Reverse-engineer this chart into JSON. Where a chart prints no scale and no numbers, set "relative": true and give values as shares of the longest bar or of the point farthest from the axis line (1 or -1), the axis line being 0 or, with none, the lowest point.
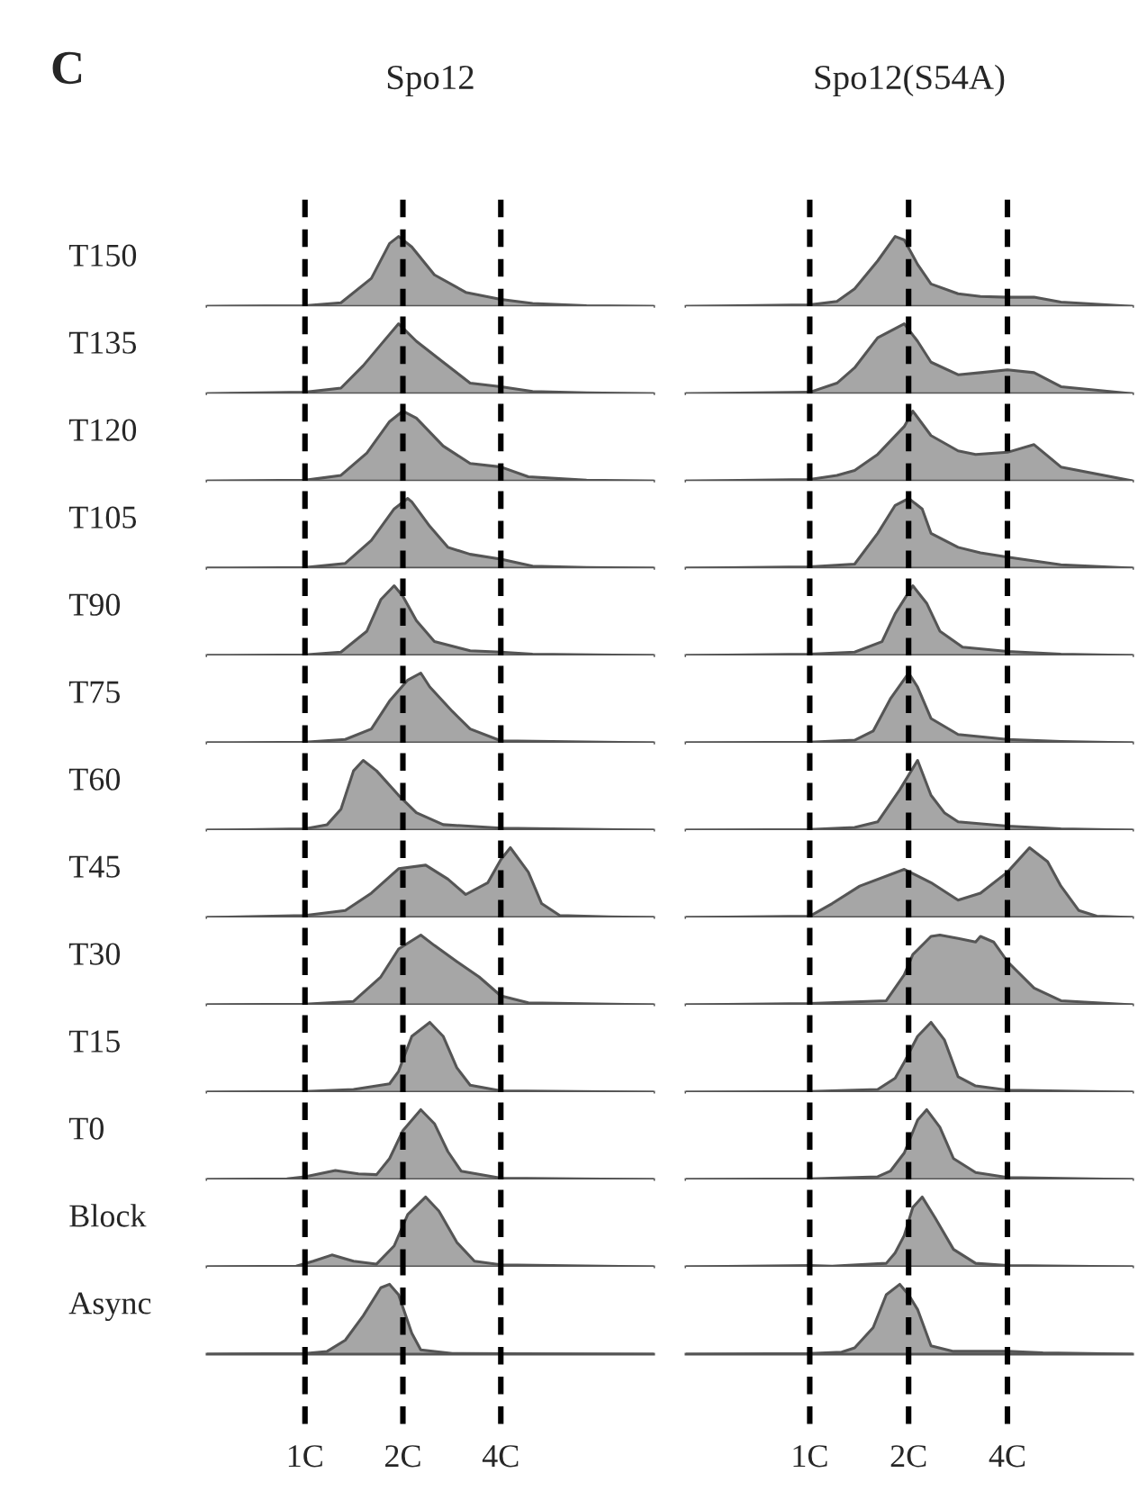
{
  "chart_data": [
    {
      "type": "area",
      "relative": true,
      "log": "x",
      "title": "Spo12",
      "annotations": [
        "C"
      ],
      "ylabel": "T150",
      "x": [
        0.5,
        1.0,
        1.29,
        1.6,
        1.82,
        1.94,
        2.13,
        2.5,
        3.12,
        4.0,
        5.01,
        7.34,
        11.8
      ],
      "values": [
        0,
        0.01,
        0.05,
        0.4,
        0.9,
        1,
        0.85,
        0.45,
        0.2,
        0.1,
        0.04,
        0.01,
        0
      ],
      "color": "#a6a6a6",
      "xlim": [
        0.5,
        11.8
      ],
      "xticks": [
        {
          "value": 1,
          "label": null
        },
        {
          "value": 2,
          "label": null
        },
        {
          "value": 4,
          "label": null
        }
      ],
      "tick_labels": false,
      "ref_lines": [
        {
          "axis": "x",
          "value": 1,
          "line_style": "dashed",
          "color": "#000000"
        },
        {
          "axis": "x",
          "value": 2,
          "line_style": "dashed",
          "color": "#000000"
        },
        {
          "axis": "x",
          "value": 4,
          "line_style": "dashed",
          "color": "#000000"
        }
      ]
    },
    {
      "type": "area",
      "relative": true,
      "log": "x",
      "title": "Spo12(S54A)",
      "x": [
        0.42,
        1.0,
        1.21,
        1.37,
        1.61,
        1.82,
        1.94,
        2.13,
        2.34,
        2.83,
        3.31,
        4.0,
        4.82,
        5.82,
        9.62
      ],
      "values": [
        0,
        0.02,
        0.07,
        0.25,
        0.65,
        1,
        0.95,
        0.6,
        0.32,
        0.18,
        0.14,
        0.13,
        0.13,
        0.06,
        0
      ],
      "color": "#a6a6a6",
      "xlim": [
        0.42,
        9.62
      ],
      "xticks": [
        {
          "value": 1,
          "label": null
        },
        {
          "value": 2,
          "label": null
        },
        {
          "value": 4,
          "label": null
        }
      ],
      "tick_labels": false,
      "ref_lines": [
        {
          "axis": "x",
          "value": 1,
          "line_style": "dashed",
          "color": "#000000"
        },
        {
          "axis": "x",
          "value": 2,
          "line_style": "dashed",
          "color": "#000000"
        },
        {
          "axis": "x",
          "value": 4,
          "line_style": "dashed",
          "color": "#000000"
        }
      ]
    },
    {
      "type": "area",
      "relative": true,
      "log": "x",
      "ylabel": "T135",
      "x": [
        0.5,
        1.0,
        1.29,
        1.51,
        1.71,
        1.94,
        2.2,
        2.66,
        3.22,
        4.0,
        5.01,
        7.34,
        11.8
      ],
      "values": [
        0,
        0.02,
        0.08,
        0.4,
        0.7,
        1,
        0.75,
        0.45,
        0.15,
        0.1,
        0.03,
        0.01,
        0
      ],
      "color": "#a6a6a6",
      "xlim": [
        0.5,
        11.8
      ],
      "xticks": [
        {
          "value": 1,
          "label": null
        },
        {
          "value": 2,
          "label": null
        },
        {
          "value": 4,
          "label": null
        }
      ],
      "tick_labels": false,
      "ref_lines": [
        {
          "axis": "x",
          "value": 1,
          "line_style": "dashed",
          "color": "#000000"
        },
        {
          "axis": "x",
          "value": 2,
          "line_style": "dashed",
          "color": "#000000"
        },
        {
          "axis": "x",
          "value": 4,
          "line_style": "dashed",
          "color": "#000000"
        }
      ]
    },
    {
      "type": "area",
      "relative": true,
      "log": "x",
      "x": [
        0.42,
        1.0,
        1.21,
        1.37,
        1.61,
        1.94,
        2.13,
        2.34,
        2.83,
        3.31,
        4.0,
        4.82,
        5.82,
        9.62
      ],
      "values": [
        0,
        0.02,
        0.15,
        0.37,
        0.8,
        1,
        0.75,
        0.45,
        0.27,
        0.3,
        0.34,
        0.3,
        0.1,
        0
      ],
      "color": "#a6a6a6",
      "xlim": [
        0.42,
        9.62
      ],
      "xticks": [
        {
          "value": 1,
          "label": null
        },
        {
          "value": 2,
          "label": null
        },
        {
          "value": 4,
          "label": null
        }
      ],
      "tick_labels": false,
      "ref_lines": [
        {
          "axis": "x",
          "value": 1,
          "line_style": "dashed",
          "color": "#000000"
        },
        {
          "axis": "x",
          "value": 2,
          "line_style": "dashed",
          "color": "#000000"
        },
        {
          "axis": "x",
          "value": 4,
          "line_style": "dashed",
          "color": "#000000"
        }
      ]
    },
    {
      "type": "area",
      "relative": true,
      "log": "x",
      "ylabel": "T120",
      "x": [
        0.5,
        1.0,
        1.29,
        1.55,
        1.82,
        2.0,
        2.2,
        2.66,
        3.22,
        4.0,
        4.86,
        7.34,
        11.8
      ],
      "values": [
        0,
        0.01,
        0.08,
        0.4,
        0.85,
        1,
        0.9,
        0.5,
        0.25,
        0.2,
        0.06,
        0.01,
        0
      ],
      "color": "#a6a6a6",
      "xlim": [
        0.5,
        11.8
      ],
      "xticks": [
        {
          "value": 1,
          "label": null
        },
        {
          "value": 2,
          "label": null
        },
        {
          "value": 4,
          "label": null
        }
      ],
      "tick_labels": false,
      "ref_lines": [
        {
          "axis": "x",
          "value": 1,
          "line_style": "dashed",
          "color": "#000000"
        },
        {
          "axis": "x",
          "value": 2,
          "line_style": "dashed",
          "color": "#000000"
        },
        {
          "axis": "x",
          "value": 4,
          "line_style": "dashed",
          "color": "#000000"
        }
      ]
    },
    {
      "type": "area",
      "relative": true,
      "log": "x",
      "x": [
        0.42,
        1.0,
        1.21,
        1.37,
        1.61,
        1.94,
        2.06,
        2.34,
        2.83,
        3.2,
        4.0,
        4.82,
        5.82,
        9.62
      ],
      "values": [
        0,
        0.02,
        0.08,
        0.15,
        0.38,
        0.78,
        1,
        0.65,
        0.43,
        0.38,
        0.41,
        0.52,
        0.2,
        0
      ],
      "color": "#a6a6a6",
      "xlim": [
        0.42,
        9.62
      ],
      "xticks": [
        {
          "value": 1,
          "label": null
        },
        {
          "value": 2,
          "label": null
        },
        {
          "value": 4,
          "label": null
        }
      ],
      "tick_labels": false,
      "ref_lines": [
        {
          "axis": "x",
          "value": 1,
          "line_style": "dashed",
          "color": "#000000"
        },
        {
          "axis": "x",
          "value": 2,
          "line_style": "dashed",
          "color": "#000000"
        },
        {
          "axis": "x",
          "value": 4,
          "line_style": "dashed",
          "color": "#000000"
        }
      ]
    },
    {
      "type": "area",
      "relative": true,
      "log": "x",
      "ylabel": "T105",
      "x": [
        0.5,
        1.0,
        1.33,
        1.6,
        1.88,
        2.07,
        2.13,
        2.42,
        2.75,
        3.22,
        4.0,
        5.01,
        7.34,
        11.8
      ],
      "values": [
        0,
        0.01,
        0.07,
        0.4,
        0.85,
        1,
        0.95,
        0.6,
        0.3,
        0.2,
        0.13,
        0.03,
        0.01,
        0
      ],
      "color": "#a6a6a6",
      "xlim": [
        0.5,
        11.8
      ],
      "xticks": [
        {
          "value": 1,
          "label": null
        },
        {
          "value": 2,
          "label": null
        },
        {
          "value": 4,
          "label": null
        }
      ],
      "tick_labels": false,
      "ref_lines": [
        {
          "axis": "x",
          "value": 1,
          "line_style": "dashed",
          "color": "#000000"
        },
        {
          "axis": "x",
          "value": 2,
          "line_style": "dashed",
          "color": "#000000"
        },
        {
          "axis": "x",
          "value": 4,
          "line_style": "dashed",
          "color": "#000000"
        }
      ]
    },
    {
      "type": "area",
      "relative": true,
      "log": "x",
      "x": [
        0.42,
        1.0,
        1.37,
        1.61,
        1.82,
        2.0,
        2.2,
        2.34,
        2.83,
        3.31,
        4.0,
        5.82,
        9.62
      ],
      "values": [
        0,
        0.02,
        0.06,
        0.5,
        0.9,
        1,
        0.85,
        0.5,
        0.3,
        0.22,
        0.16,
        0.05,
        0
      ],
      "color": "#a6a6a6",
      "xlim": [
        0.42,
        9.62
      ],
      "xticks": [
        {
          "value": 1,
          "label": null
        },
        {
          "value": 2,
          "label": null
        },
        {
          "value": 4,
          "label": null
        }
      ],
      "tick_labels": false,
      "ref_lines": [
        {
          "axis": "x",
          "value": 1,
          "line_style": "dashed",
          "color": "#000000"
        },
        {
          "axis": "x",
          "value": 2,
          "line_style": "dashed",
          "color": "#000000"
        },
        {
          "axis": "x",
          "value": 4,
          "line_style": "dashed",
          "color": "#000000"
        }
      ]
    },
    {
      "type": "area",
      "relative": true,
      "log": "x",
      "ylabel": "T90",
      "x": [
        0.5,
        1.0,
        1.29,
        1.55,
        1.71,
        1.88,
        2.0,
        2.2,
        2.5,
        3.22,
        4.0,
        5.01,
        11.8
      ],
      "values": [
        0,
        0.01,
        0.05,
        0.35,
        0.8,
        1,
        0.85,
        0.5,
        0.2,
        0.07,
        0.05,
        0.02,
        0
      ],
      "color": "#a6a6a6",
      "xlim": [
        0.5,
        11.8
      ],
      "xticks": [
        {
          "value": 1,
          "label": null
        },
        {
          "value": 2,
          "label": null
        },
        {
          "value": 4,
          "label": null
        }
      ],
      "tick_labels": false,
      "ref_lines": [
        {
          "axis": "x",
          "value": 1,
          "line_style": "dashed",
          "color": "#000000"
        },
        {
          "axis": "x",
          "value": 2,
          "line_style": "dashed",
          "color": "#000000"
        },
        {
          "axis": "x",
          "value": 4,
          "line_style": "dashed",
          "color": "#000000"
        }
      ]
    },
    {
      "type": "area",
      "relative": true,
      "log": "x",
      "x": [
        0.42,
        1.0,
        1.37,
        1.66,
        1.82,
        2.06,
        2.27,
        2.49,
        2.92,
        4.0,
        5.82,
        9.62
      ],
      "values": [
        0,
        0.02,
        0.05,
        0.2,
        0.6,
        1,
        0.75,
        0.35,
        0.12,
        0.06,
        0.02,
        0
      ],
      "color": "#a6a6a6",
      "xlim": [
        0.42,
        9.62
      ],
      "xticks": [
        {
          "value": 1,
          "label": null
        },
        {
          "value": 2,
          "label": null
        },
        {
          "value": 4,
          "label": null
        }
      ],
      "tick_labels": false,
      "ref_lines": [
        {
          "axis": "x",
          "value": 1,
          "line_style": "dashed",
          "color": "#000000"
        },
        {
          "axis": "x",
          "value": 2,
          "line_style": "dashed",
          "color": "#000000"
        },
        {
          "axis": "x",
          "value": 4,
          "line_style": "dashed",
          "color": "#000000"
        }
      ]
    },
    {
      "type": "area",
      "relative": true,
      "log": "x",
      "ylabel": "T75",
      "x": [
        0.5,
        1.0,
        1.33,
        1.6,
        1.82,
        2.07,
        2.27,
        2.42,
        2.84,
        3.22,
        4.0,
        11.8
      ],
      "values": [
        0,
        0.01,
        0.05,
        0.2,
        0.6,
        0.9,
        1,
        0.8,
        0.45,
        0.2,
        0.03,
        0
      ],
      "color": "#a6a6a6",
      "xlim": [
        0.5,
        11.8
      ],
      "xticks": [
        {
          "value": 1,
          "label": null
        },
        {
          "value": 2,
          "label": null
        },
        {
          "value": 4,
          "label": null
        }
      ],
      "tick_labels": false,
      "ref_lines": [
        {
          "axis": "x",
          "value": 1,
          "line_style": "dashed",
          "color": "#000000"
        },
        {
          "axis": "x",
          "value": 2,
          "line_style": "dashed",
          "color": "#000000"
        },
        {
          "axis": "x",
          "value": 4,
          "line_style": "dashed",
          "color": "#000000"
        }
      ]
    },
    {
      "type": "area",
      "relative": true,
      "log": "x",
      "x": [
        0.42,
        1.0,
        1.37,
        1.56,
        1.76,
        2.0,
        2.13,
        2.34,
        2.83,
        4.0,
        5.82,
        9.62
      ],
      "values": [
        0,
        0.01,
        0.04,
        0.17,
        0.63,
        1,
        0.8,
        0.35,
        0.12,
        0.05,
        0.02,
        0
      ],
      "color": "#a6a6a6",
      "xlim": [
        0.42,
        9.62
      ],
      "xticks": [
        {
          "value": 1,
          "label": null
        },
        {
          "value": 2,
          "label": null
        },
        {
          "value": 4,
          "label": null
        }
      ],
      "tick_labels": false,
      "ref_lines": [
        {
          "axis": "x",
          "value": 1,
          "line_style": "dashed",
          "color": "#000000"
        },
        {
          "axis": "x",
          "value": 2,
          "line_style": "dashed",
          "color": "#000000"
        },
        {
          "axis": "x",
          "value": 4,
          "line_style": "dashed",
          "color": "#000000"
        }
      ]
    },
    {
      "type": "area",
      "relative": true,
      "log": "x",
      "ylabel": "T60",
      "x": [
        0.5,
        1.0,
        1.17,
        1.29,
        1.41,
        1.51,
        1.66,
        1.94,
        2.2,
        2.66,
        4.0,
        11.8
      ],
      "values": [
        0,
        0.02,
        0.08,
        0.3,
        0.85,
        1,
        0.85,
        0.5,
        0.25,
        0.08,
        0.03,
        0
      ],
      "color": "#a6a6a6",
      "xlim": [
        0.5,
        11.8
      ],
      "xticks": [
        {
          "value": 1,
          "label": null
        },
        {
          "value": 2,
          "label": null
        },
        {
          "value": 4,
          "label": null
        }
      ],
      "tick_labels": false,
      "ref_lines": [
        {
          "axis": "x",
          "value": 1,
          "line_style": "dashed",
          "color": "#000000"
        },
        {
          "axis": "x",
          "value": 2,
          "line_style": "dashed",
          "color": "#000000"
        },
        {
          "axis": "x",
          "value": 4,
          "line_style": "dashed",
          "color": "#000000"
        }
      ]
    },
    {
      "type": "area",
      "relative": true,
      "log": "x",
      "x": [
        0.42,
        1.0,
        1.37,
        1.61,
        1.88,
        2.13,
        2.34,
        2.57,
        2.83,
        4.0,
        5.82,
        9.62
      ],
      "values": [
        0,
        0.01,
        0.04,
        0.12,
        0.58,
        1,
        0.5,
        0.25,
        0.12,
        0.06,
        0.02,
        0
      ],
      "color": "#a6a6a6",
      "xlim": [
        0.42,
        9.62
      ],
      "xticks": [
        {
          "value": 1,
          "label": null
        },
        {
          "value": 2,
          "label": null
        },
        {
          "value": 4,
          "label": null
        }
      ],
      "tick_labels": false,
      "ref_lines": [
        {
          "axis": "x",
          "value": 1,
          "line_style": "dashed",
          "color": "#000000"
        },
        {
          "axis": "x",
          "value": 2,
          "line_style": "dashed",
          "color": "#000000"
        },
        {
          "axis": "x",
          "value": 4,
          "line_style": "dashed",
          "color": "#000000"
        }
      ]
    },
    {
      "type": "area",
      "relative": true,
      "log": "x",
      "ylabel": "T45",
      "x": [
        0.5,
        1.0,
        1.33,
        1.6,
        1.94,
        2.35,
        2.75,
        3.12,
        3.65,
        4.0,
        4.28,
        4.86,
        5.34,
        6.07,
        8.59,
        11.8
      ],
      "values": [
        0,
        0.03,
        0.1,
        0.35,
        0.7,
        0.75,
        0.55,
        0.33,
        0.5,
        0.83,
        1,
        0.65,
        0.2,
        0.03,
        0.01,
        0
      ],
      "color": "#a6a6a6",
      "xlim": [
        0.5,
        11.8
      ],
      "xticks": [
        {
          "value": 1,
          "label": null
        },
        {
          "value": 2,
          "label": null
        },
        {
          "value": 4,
          "label": null
        }
      ],
      "tick_labels": false,
      "ref_lines": [
        {
          "axis": "x",
          "value": 1,
          "line_style": "dashed",
          "color": "#000000"
        },
        {
          "axis": "x",
          "value": 2,
          "line_style": "dashed",
          "color": "#000000"
        },
        {
          "axis": "x",
          "value": 4,
          "line_style": "dashed",
          "color": "#000000"
        }
      ]
    },
    {
      "type": "area",
      "relative": true,
      "log": "x",
      "x": [
        0.42,
        1.0,
        1.17,
        1.42,
        1.94,
        2.34,
        2.83,
        3.31,
        4.0,
        4.67,
        5.3,
        5.82,
        6.6,
        7.48,
        9.62
      ],
      "values": [
        0,
        0.02,
        0.2,
        0.45,
        0.69,
        0.5,
        0.25,
        0.35,
        0.65,
        1,
        0.8,
        0.45,
        0.1,
        0.02,
        0
      ],
      "color": "#a6a6a6",
      "xlim": [
        0.42,
        9.62
      ],
      "xticks": [
        {
          "value": 1,
          "label": null
        },
        {
          "value": 2,
          "label": null
        },
        {
          "value": 4,
          "label": null
        }
      ],
      "tick_labels": false,
      "ref_lines": [
        {
          "axis": "x",
          "value": 1,
          "line_style": "dashed",
          "color": "#000000"
        },
        {
          "axis": "x",
          "value": 2,
          "line_style": "dashed",
          "color": "#000000"
        },
        {
          "axis": "x",
          "value": 4,
          "line_style": "dashed",
          "color": "#000000"
        }
      ]
    },
    {
      "type": "area",
      "relative": true,
      "log": "x",
      "ylabel": "T30",
      "x": [
        0.5,
        1.0,
        1.41,
        1.71,
        1.94,
        2.27,
        2.5,
        2.93,
        3.43,
        4.0,
        4.86,
        11.8
      ],
      "values": [
        0,
        0.01,
        0.05,
        0.4,
        0.8,
        1,
        0.85,
        0.62,
        0.4,
        0.13,
        0.03,
        0
      ],
      "color": "#a6a6a6",
      "xlim": [
        0.5,
        11.8
      ],
      "xticks": [
        {
          "value": 1,
          "label": null
        },
        {
          "value": 2,
          "label": null
        },
        {
          "value": 4,
          "label": null
        }
      ],
      "tick_labels": false,
      "ref_lines": [
        {
          "axis": "x",
          "value": 1,
          "line_style": "dashed",
          "color": "#000000"
        },
        {
          "axis": "x",
          "value": 2,
          "line_style": "dashed",
          "color": "#000000"
        },
        {
          "axis": "x",
          "value": 4,
          "line_style": "dashed",
          "color": "#000000"
        }
      ]
    },
    {
      "type": "area",
      "relative": true,
      "log": "x",
      "x": [
        0.42,
        1.0,
        1.71,
        1.94,
        2.06,
        2.34,
        2.49,
        2.83,
        3.2,
        3.31,
        3.63,
        4.0,
        4.82,
        5.82,
        9.62
      ],
      "values": [
        0,
        0.02,
        0.06,
        0.43,
        0.72,
        0.98,
        1,
        0.95,
        0.9,
        0.98,
        0.9,
        0.62,
        0.24,
        0.06,
        0
      ],
      "color": "#a6a6a6",
      "xlim": [
        0.42,
        9.62
      ],
      "xticks": [
        {
          "value": 1,
          "label": null
        },
        {
          "value": 2,
          "label": null
        },
        {
          "value": 4,
          "label": null
        }
      ],
      "tick_labels": false,
      "ref_lines": [
        {
          "axis": "x",
          "value": 1,
          "line_style": "dashed",
          "color": "#000000"
        },
        {
          "axis": "x",
          "value": 2,
          "line_style": "dashed",
          "color": "#000000"
        },
        {
          "axis": "x",
          "value": 4,
          "line_style": "dashed",
          "color": "#000000"
        }
      ]
    },
    {
      "type": "area",
      "relative": true,
      "log": "x",
      "ylabel": "T15",
      "x": [
        0.5,
        1.0,
        1.41,
        1.82,
        1.94,
        2.13,
        2.42,
        2.66,
        2.93,
        3.22,
        4.0,
        11.8
      ],
      "values": [
        0,
        0.01,
        0.04,
        0.12,
        0.3,
        0.8,
        1,
        0.8,
        0.35,
        0.1,
        0.02,
        0
      ],
      "color": "#a6a6a6",
      "xlim": [
        0.5,
        11.8
      ],
      "xticks": [
        {
          "value": 1,
          "label": null
        },
        {
          "value": 2,
          "label": null
        },
        {
          "value": 4,
          "label": null
        }
      ],
      "tick_labels": false,
      "ref_lines": [
        {
          "axis": "x",
          "value": 1,
          "line_style": "dashed",
          "color": "#000000"
        },
        {
          "axis": "x",
          "value": 2,
          "line_style": "dashed",
          "color": "#000000"
        },
        {
          "axis": "x",
          "value": 4,
          "line_style": "dashed",
          "color": "#000000"
        }
      ]
    },
    {
      "type": "area",
      "relative": true,
      "log": "x",
      "x": [
        0.42,
        1.0,
        1.61,
        1.82,
        1.94,
        2.13,
        2.34,
        2.57,
        2.83,
        3.2,
        4.0,
        9.62
      ],
      "values": [
        0,
        0.01,
        0.04,
        0.2,
        0.43,
        0.8,
        1,
        0.75,
        0.22,
        0.09,
        0.03,
        0
      ],
      "color": "#a6a6a6",
      "xlim": [
        0.42,
        9.62
      ],
      "xticks": [
        {
          "value": 1,
          "label": null
        },
        {
          "value": 2,
          "label": null
        },
        {
          "value": 4,
          "label": null
        }
      ],
      "tick_labels": false,
      "ref_lines": [
        {
          "axis": "x",
          "value": 1,
          "line_style": "dashed",
          "color": "#000000"
        },
        {
          "axis": "x",
          "value": 2,
          "line_style": "dashed",
          "color": "#000000"
        },
        {
          "axis": "x",
          "value": 4,
          "line_style": "dashed",
          "color": "#000000"
        }
      ]
    },
    {
      "type": "area",
      "relative": true,
      "log": "x",
      "ylabel": "T0",
      "x": [
        0.5,
        0.88,
        1.0,
        1.24,
        1.46,
        1.66,
        1.82,
        2.0,
        2.27,
        2.5,
        2.75,
        3.02,
        4.0,
        11.8
      ],
      "values": [
        0,
        0.01,
        0.04,
        0.13,
        0.08,
        0.07,
        0.3,
        0.7,
        1,
        0.8,
        0.4,
        0.12,
        0.02,
        0
      ],
      "color": "#a6a6a6",
      "xlim": [
        0.5,
        11.8
      ],
      "xticks": [
        {
          "value": 1,
          "label": null
        },
        {
          "value": 2,
          "label": null
        },
        {
          "value": 4,
          "label": null
        }
      ],
      "tick_labels": false,
      "ref_lines": [
        {
          "axis": "x",
          "value": 1,
          "line_style": "dashed",
          "color": "#000000"
        },
        {
          "axis": "x",
          "value": 2,
          "line_style": "dashed",
          "color": "#000000"
        },
        {
          "axis": "x",
          "value": 4,
          "line_style": "dashed",
          "color": "#000000"
        }
      ]
    },
    {
      "type": "area",
      "relative": true,
      "log": "x",
      "x": [
        0.42,
        1.0,
        1.61,
        1.76,
        1.94,
        2.13,
        2.27,
        2.49,
        2.74,
        3.2,
        4.0,
        9.62
      ],
      "values": [
        0,
        0.01,
        0.04,
        0.12,
        0.38,
        0.85,
        1,
        0.75,
        0.3,
        0.1,
        0.03,
        0
      ],
      "color": "#a6a6a6",
      "xlim": [
        0.42,
        9.62
      ],
      "xticks": [
        {
          "value": 1,
          "label": null
        },
        {
          "value": 2,
          "label": null
        },
        {
          "value": 4,
          "label": null
        }
      ],
      "tick_labels": false,
      "ref_lines": [
        {
          "axis": "x",
          "value": 1,
          "line_style": "dashed",
          "color": "#000000"
        },
        {
          "axis": "x",
          "value": 2,
          "line_style": "dashed",
          "color": "#000000"
        },
        {
          "axis": "x",
          "value": 4,
          "line_style": "dashed",
          "color": "#000000"
        }
      ]
    },
    {
      "type": "area",
      "relative": true,
      "log": "x",
      "ylabel": "Block",
      "x": [
        0.5,
        0.94,
        1.06,
        1.21,
        1.41,
        1.66,
        1.88,
        2.07,
        2.35,
        2.58,
        2.93,
        3.32,
        4.0,
        11.8
      ],
      "values": [
        0,
        0.01,
        0.08,
        0.17,
        0.08,
        0.04,
        0.3,
        0.75,
        1,
        0.8,
        0.35,
        0.08,
        0.03,
        0
      ],
      "color": "#a6a6a6",
      "xlim": [
        0.5,
        11.8
      ],
      "xticks": [
        {
          "value": 1,
          "label": null
        },
        {
          "value": 2,
          "label": null
        },
        {
          "value": 4,
          "label": null
        }
      ],
      "tick_labels": false,
      "ref_lines": [
        {
          "axis": "x",
          "value": 1,
          "line_style": "dashed",
          "color": "#000000"
        },
        {
          "axis": "x",
          "value": 2,
          "line_style": "dashed",
          "color": "#000000"
        },
        {
          "axis": "x",
          "value": 4,
          "line_style": "dashed",
          "color": "#000000"
        }
      ]
    },
    {
      "type": "area",
      "relative": true,
      "log": "x",
      "x": [
        0.42,
        1.0,
        1.17,
        1.71,
        1.82,
        1.94,
        2.06,
        2.2,
        2.41,
        2.74,
        3.2,
        4.0,
        9.62
      ],
      "values": [
        0,
        0.02,
        0.01,
        0.05,
        0.2,
        0.45,
        0.85,
        1,
        0.7,
        0.25,
        0.05,
        0.02,
        0
      ],
      "color": "#a6a6a6",
      "xlim": [
        0.42,
        9.62
      ],
      "xticks": [
        {
          "value": 1,
          "label": null
        },
        {
          "value": 2,
          "label": null
        },
        {
          "value": 4,
          "label": null
        }
      ],
      "tick_labels": false,
      "ref_lines": [
        {
          "axis": "x",
          "value": 1,
          "line_style": "dashed",
          "color": "#000000"
        },
        {
          "axis": "x",
          "value": 2,
          "line_style": "dashed",
          "color": "#000000"
        },
        {
          "axis": "x",
          "value": 4,
          "line_style": "dashed",
          "color": "#000000"
        }
      ]
    },
    {
      "type": "area",
      "relative": true,
      "log": "x",
      "ylabel": "Async",
      "x": [
        0.5,
        1.0,
        1.17,
        1.33,
        1.51,
        1.71,
        1.82,
        1.94,
        2.13,
        2.27,
        2.84,
        11.8
      ],
      "values": [
        0,
        0.01,
        0.04,
        0.2,
        0.55,
        0.95,
        1,
        0.85,
        0.3,
        0.06,
        0.01,
        0
      ],
      "color": "#a6a6a6",
      "xlim": [
        0.5,
        11.8
      ],
      "xticks": [
        {
          "value": 1,
          "label": "1C"
        },
        {
          "value": 2,
          "label": "2C"
        },
        {
          "value": 4,
          "label": "4C"
        }
      ],
      "tick_labels": "x",
      "ref_lines": [
        {
          "axis": "x",
          "value": 1,
          "line_style": "dashed",
          "color": "#000000"
        },
        {
          "axis": "x",
          "value": 2,
          "line_style": "dashed",
          "color": "#000000"
        },
        {
          "axis": "x",
          "value": 4,
          "line_style": "dashed",
          "color": "#000000"
        }
      ]
    },
    {
      "type": "area",
      "relative": true,
      "log": "x",
      "x": [
        0.42,
        1.0,
        1.25,
        1.37,
        1.56,
        1.71,
        1.88,
        2.0,
        2.13,
        2.34,
        2.74,
        4.0,
        5.13,
        9.62
      ],
      "values": [
        0,
        0.01,
        0.03,
        0.09,
        0.38,
        0.85,
        1,
        0.85,
        0.64,
        0.12,
        0.04,
        0.04,
        0.02,
        0
      ],
      "color": "#a6a6a6",
      "xlim": [
        0.42,
        9.62
      ],
      "xticks": [
        {
          "value": 1,
          "label": "1C"
        },
        {
          "value": 2,
          "label": "2C"
        },
        {
          "value": 4,
          "label": "4C"
        }
      ],
      "tick_labels": "x",
      "ref_lines": [
        {
          "axis": "x",
          "value": 1,
          "line_style": "dashed",
          "color": "#000000"
        },
        {
          "axis": "x",
          "value": 2,
          "line_style": "dashed",
          "color": "#000000"
        },
        {
          "axis": "x",
          "value": 4,
          "line_style": "dashed",
          "color": "#000000"
        }
      ]
    }
  ]
}
